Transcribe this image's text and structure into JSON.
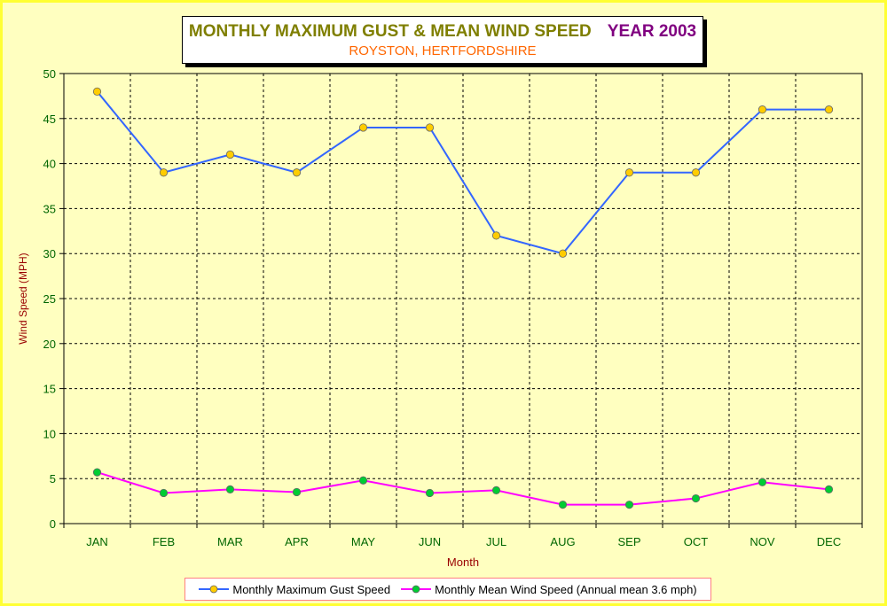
{
  "chart_data": {
    "type": "line",
    "title": "MONTHLY MAXIMUM GUST & MEAN WIND SPEED",
    "title_year": "YEAR 2003",
    "subtitle": "ROYSTON, HERTFORDSHIRE",
    "xlabel": "Month",
    "ylabel": "Wind Speed (MPH)",
    "ylim": [
      0,
      50
    ],
    "yticks": [
      0,
      5,
      10,
      15,
      20,
      25,
      30,
      35,
      40,
      45,
      50
    ],
    "grid": true,
    "legend_position": "bottom",
    "categories": [
      "JAN",
      "FEB",
      "MAR",
      "APR",
      "MAY",
      "JUN",
      "JUL",
      "AUG",
      "SEP",
      "OCT",
      "NOV",
      "DEC"
    ],
    "series": [
      {
        "name": "Monthly Maximum Gust Speed",
        "color": "#3366ff",
        "marker_color": "#ffcc00",
        "values": [
          48,
          39,
          41,
          39,
          44,
          44,
          32,
          30,
          39,
          39,
          46,
          46
        ]
      },
      {
        "name": "Monthly Mean Wind Speed (Annual mean 3.6 mph)",
        "color": "#ff00ff",
        "marker_color": "#00cc33",
        "values": [
          5.7,
          3.4,
          3.8,
          3.5,
          4.8,
          3.4,
          3.7,
          2.1,
          2.1,
          2.8,
          4.6,
          3.8
        ]
      }
    ]
  },
  "colors": {
    "background": "#ffffc0",
    "axis_text": "#006600",
    "axis_title": "#990000"
  }
}
